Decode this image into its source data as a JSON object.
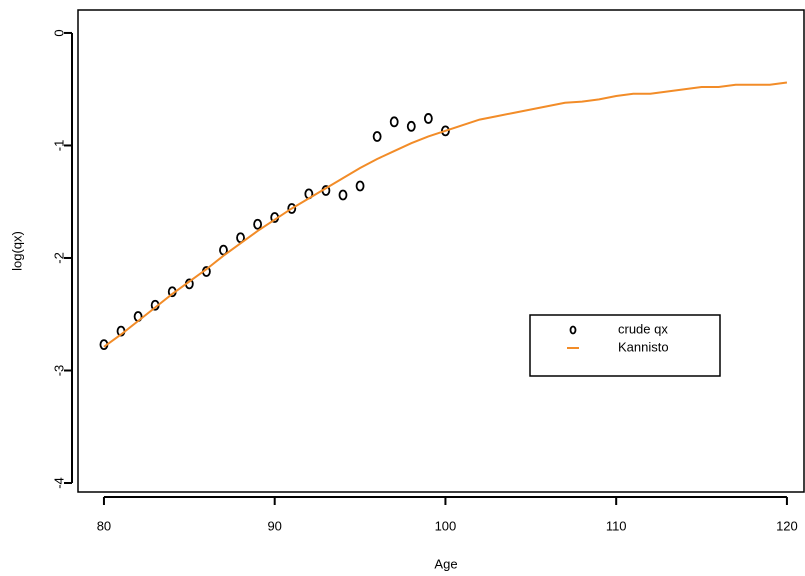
{
  "chart_data": {
    "type": "scatter-line",
    "x_label": "Age",
    "y_label": "log(qx)",
    "xlim": [
      78.48,
      121.0
    ],
    "ylim": [
      -4.08,
      0.204
    ],
    "xticks": [
      80,
      90,
      100,
      110,
      120
    ],
    "yticks": [
      0,
      -1,
      -2,
      -3,
      -4
    ],
    "legend": "right",
    "series": [
      {
        "name": "crude qx",
        "style": "points",
        "color": "#000000",
        "x": [
          80,
          81,
          82,
          83,
          84,
          85,
          86,
          87,
          88,
          89,
          90,
          91,
          92,
          93,
          94,
          95,
          96,
          97,
          98,
          99,
          100
        ],
        "values": [
          -2.77,
          -2.65,
          -2.52,
          -2.42,
          -2.3,
          -2.23,
          -2.12,
          -1.93,
          -1.82,
          -1.7,
          -1.64,
          -1.56,
          -1.43,
          -1.4,
          -1.44,
          -1.36,
          -0.92,
          -0.79,
          -0.83,
          -0.76,
          -0.87
        ]
      },
      {
        "name": "Kannisto",
        "style": "line",
        "color": "#f28c28",
        "x": [
          80,
          81,
          82,
          83,
          84,
          85,
          86,
          87,
          88,
          89,
          90,
          91,
          92,
          93,
          94,
          95,
          96,
          97,
          98,
          99,
          100,
          101,
          102,
          103,
          104,
          105,
          106,
          107,
          108,
          109,
          110,
          111,
          112,
          113,
          114,
          115,
          116,
          117,
          118,
          119,
          120
        ],
        "values": [
          -2.79,
          -2.68,
          -2.56,
          -2.44,
          -2.32,
          -2.21,
          -2.1,
          -1.98,
          -1.87,
          -1.76,
          -1.66,
          -1.56,
          -1.47,
          -1.38,
          -1.29,
          -1.2,
          -1.12,
          -1.05,
          -0.98,
          -0.92,
          -0.87,
          -0.82,
          -0.77,
          -0.74,
          -0.71,
          -0.68,
          -0.65,
          -0.62,
          -0.61,
          -0.59,
          -0.56,
          -0.54,
          -0.54,
          -0.52,
          -0.5,
          -0.48,
          -0.48,
          -0.46,
          -0.46,
          -0.46,
          -0.44
        ]
      }
    ]
  }
}
